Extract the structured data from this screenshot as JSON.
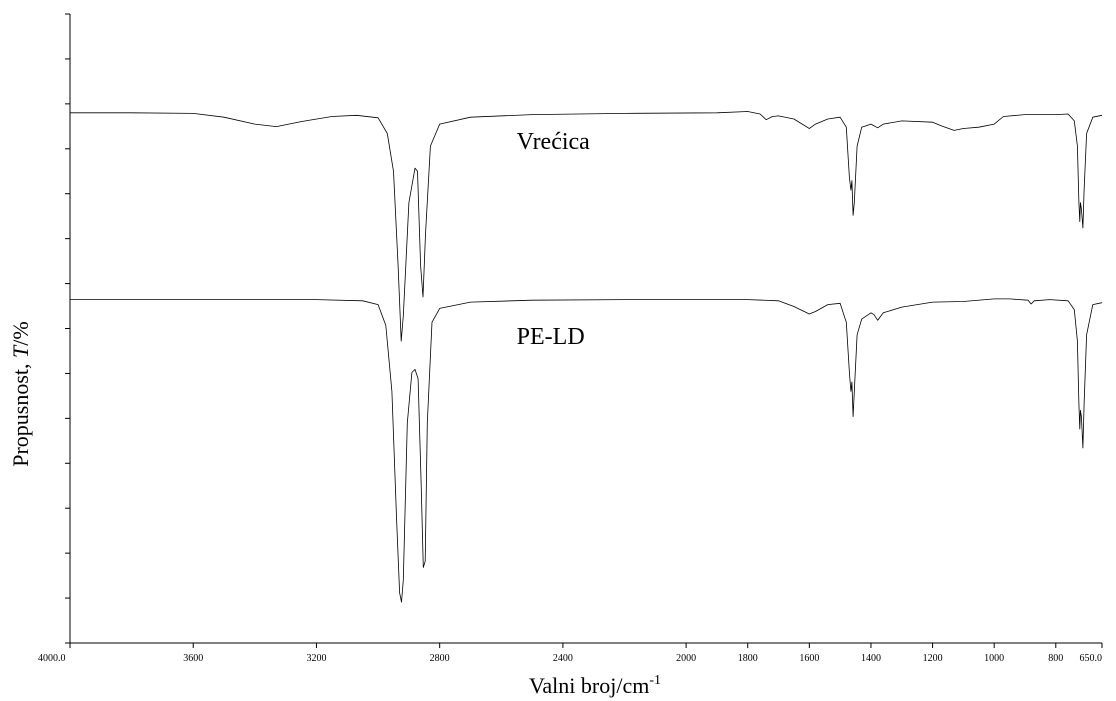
{
  "chart_data": {
    "type": "line",
    "xlabel": "Valni broj/cm",
    "xlabel_superscript": "-1",
    "ylabel_prefix": "Propusnost, ",
    "ylabel_italic": "T",
    "ylabel_suffix": "/%",
    "x_reversed": true,
    "xlim": [
      4000.0,
      650.0
    ],
    "ylim": [
      0,
      100
    ],
    "grid": false,
    "x_ticks": [
      4000.0,
      3600,
      3200,
      2800,
      2400,
      2000,
      1800,
      1600,
      1400,
      1200,
      1000,
      800,
      650.0
    ],
    "x_tick_labels": [
      "4000.0",
      "3600",
      "3200",
      "2800",
      "2400",
      "2000",
      "1800",
      "1600",
      "1400",
      "1200",
      "1000",
      "800",
      "650.0"
    ],
    "y_tick_count": 15,
    "series": [
      {
        "name": "Vrećica",
        "color": "#000000",
        "points": [
          [
            4000,
            84.3
          ],
          [
            3800,
            84.3
          ],
          [
            3600,
            84.2
          ],
          [
            3500,
            83.6
          ],
          [
            3400,
            82.5
          ],
          [
            3330,
            82.1
          ],
          [
            3250,
            82.9
          ],
          [
            3150,
            83.7
          ],
          [
            3070,
            83.9
          ],
          [
            3000,
            83.5
          ],
          [
            2970,
            81.0
          ],
          [
            2950,
            75.0
          ],
          [
            2935,
            60.0
          ],
          [
            2925,
            48.0
          ],
          [
            2918,
            52.0
          ],
          [
            2900,
            70.0
          ],
          [
            2880,
            75.5
          ],
          [
            2872,
            75.0
          ],
          [
            2862,
            60.0
          ],
          [
            2854,
            55.0
          ],
          [
            2846,
            65.0
          ],
          [
            2830,
            79.0
          ],
          [
            2800,
            82.5
          ],
          [
            2700,
            83.6
          ],
          [
            2500,
            84.0
          ],
          [
            2200,
            84.2
          ],
          [
            1900,
            84.3
          ],
          [
            1800,
            84.5
          ],
          [
            1760,
            84.1
          ],
          [
            1740,
            83.2
          ],
          [
            1720,
            83.7
          ],
          [
            1700,
            83.8
          ],
          [
            1650,
            83.3
          ],
          [
            1600,
            81.8
          ],
          [
            1580,
            82.5
          ],
          [
            1540,
            83.3
          ],
          [
            1500,
            83.6
          ],
          [
            1480,
            82.0
          ],
          [
            1470,
            74.0
          ],
          [
            1465,
            72.0
          ],
          [
            1462,
            73.5
          ],
          [
            1458,
            68.0
          ],
          [
            1454,
            70.0
          ],
          [
            1445,
            79.0
          ],
          [
            1430,
            82.0
          ],
          [
            1400,
            82.5
          ],
          [
            1378,
            81.9
          ],
          [
            1360,
            82.5
          ],
          [
            1300,
            83.0
          ],
          [
            1200,
            82.8
          ],
          [
            1170,
            82.2
          ],
          [
            1130,
            81.5
          ],
          [
            1100,
            81.8
          ],
          [
            1050,
            82.0
          ],
          [
            1000,
            82.5
          ],
          [
            970,
            83.7
          ],
          [
            900,
            84.0
          ],
          [
            800,
            84.0
          ],
          [
            760,
            84.1
          ],
          [
            740,
            83.0
          ],
          [
            730,
            79.0
          ],
          [
            725,
            70.0
          ],
          [
            722,
            67.0
          ],
          [
            720,
            70.0
          ],
          [
            717,
            69.0
          ],
          [
            712,
            66.0
          ],
          [
            708,
            72.0
          ],
          [
            700,
            81.0
          ],
          [
            680,
            83.6
          ],
          [
            650,
            83.9
          ]
        ]
      },
      {
        "name": "PE-LD",
        "color": "#000000",
        "points": [
          [
            4000,
            54.6
          ],
          [
            3800,
            54.6
          ],
          [
            3600,
            54.6
          ],
          [
            3400,
            54.6
          ],
          [
            3200,
            54.6
          ],
          [
            3050,
            54.4
          ],
          [
            3000,
            53.8
          ],
          [
            2975,
            50.5
          ],
          [
            2955,
            40.0
          ],
          [
            2940,
            20.0
          ],
          [
            2930,
            8.0
          ],
          [
            2924,
            6.5
          ],
          [
            2918,
            10.0
          ],
          [
            2905,
            35.0
          ],
          [
            2890,
            43.0
          ],
          [
            2880,
            43.5
          ],
          [
            2870,
            42.0
          ],
          [
            2860,
            25.0
          ],
          [
            2853,
            12.0
          ],
          [
            2847,
            13.0
          ],
          [
            2840,
            35.0
          ],
          [
            2825,
            51.0
          ],
          [
            2800,
            53.2
          ],
          [
            2700,
            54.2
          ],
          [
            2500,
            54.5
          ],
          [
            2200,
            54.6
          ],
          [
            1900,
            54.6
          ],
          [
            1800,
            54.6
          ],
          [
            1700,
            54.4
          ],
          [
            1650,
            53.5
          ],
          [
            1600,
            52.3
          ],
          [
            1580,
            52.7
          ],
          [
            1540,
            53.8
          ],
          [
            1500,
            54.0
          ],
          [
            1480,
            51.0
          ],
          [
            1470,
            43.0
          ],
          [
            1465,
            40.0
          ],
          [
            1462,
            41.5
          ],
          [
            1458,
            36.0
          ],
          [
            1454,
            40.0
          ],
          [
            1445,
            49.0
          ],
          [
            1430,
            51.5
          ],
          [
            1400,
            52.5
          ],
          [
            1390,
            52.2
          ],
          [
            1378,
            51.3
          ],
          [
            1360,
            52.5
          ],
          [
            1300,
            53.4
          ],
          [
            1200,
            54.2
          ],
          [
            1100,
            54.3
          ],
          [
            1000,
            54.7
          ],
          [
            950,
            54.7
          ],
          [
            890,
            54.5
          ],
          [
            880,
            53.9
          ],
          [
            870,
            54.4
          ],
          [
            820,
            54.6
          ],
          [
            760,
            54.4
          ],
          [
            740,
            53.0
          ],
          [
            730,
            48.0
          ],
          [
            725,
            38.0
          ],
          [
            722,
            34.0
          ],
          [
            720,
            37.0
          ],
          [
            717,
            36.0
          ],
          [
            712,
            31.0
          ],
          [
            708,
            38.0
          ],
          [
            700,
            49.0
          ],
          [
            680,
            53.8
          ],
          [
            650,
            54.1
          ]
        ]
      }
    ],
    "annotations": [
      {
        "text": "Vrećica",
        "x": 2550,
        "y": 78.5
      },
      {
        "text": "PE-LD",
        "x": 2550,
        "y": 47.5
      }
    ]
  }
}
